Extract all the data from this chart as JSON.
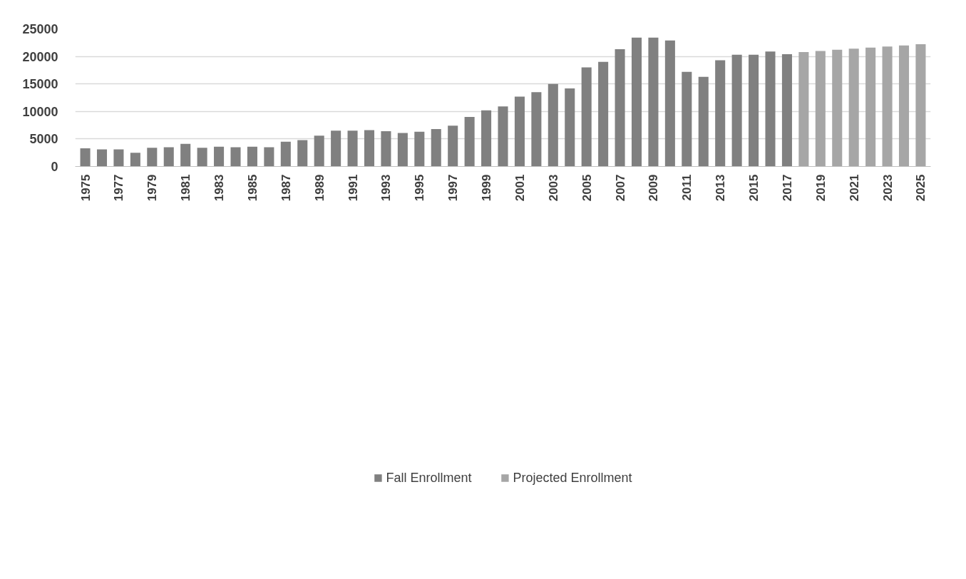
{
  "chart_data": {
    "type": "bar",
    "categories": [
      "1975",
      null,
      "1977",
      null,
      "1979",
      null,
      "1981",
      null,
      "1983",
      null,
      "1985",
      null,
      "1987",
      null,
      "1989",
      null,
      "1991",
      null,
      "1993",
      null,
      "1995",
      null,
      "1997",
      null,
      "1999",
      null,
      "2001",
      null,
      "2003",
      null,
      "2005",
      null,
      "2007",
      null,
      "2009",
      null,
      "2011",
      null,
      "2013",
      null,
      "2015",
      null,
      "2017",
      null,
      "2019",
      null,
      "2021",
      null,
      "2023",
      null,
      "2025"
    ],
    "series": [
      {
        "name": "Fall Enrollment",
        "color": "#808080",
        "values": [
          3300,
          3100,
          3100,
          2500,
          3400,
          3500,
          4100,
          3400,
          3600,
          3500,
          3600,
          3500,
          4500,
          4800,
          5600,
          6500,
          6500,
          6600,
          6400,
          6100,
          6300,
          6800,
          7400,
          9000,
          10200,
          10900,
          12700,
          13500,
          15000,
          14200,
          18000,
          19000,
          21300,
          23400,
          23400,
          22900,
          17200,
          16300,
          19300,
          20300,
          20300,
          20900,
          20400,
          null,
          null,
          null,
          null,
          null,
          null,
          null,
          null
        ]
      },
      {
        "name": "Projected Enrollment",
        "color": "#a6a6a6",
        "values": [
          null,
          null,
          null,
          null,
          null,
          null,
          null,
          null,
          null,
          null,
          null,
          null,
          null,
          null,
          null,
          null,
          null,
          null,
          null,
          null,
          null,
          null,
          null,
          null,
          null,
          null,
          null,
          null,
          null,
          null,
          null,
          null,
          null,
          null,
          null,
          null,
          null,
          null,
          null,
          null,
          null,
          null,
          null,
          20800,
          21000,
          21200,
          21400,
          21600,
          21800,
          22000,
          22200
        ]
      }
    ],
    "ylim": [
      0,
      25000
    ],
    "yticks": [
      0,
      5000,
      10000,
      15000,
      20000,
      25000
    ],
    "grid": "y",
    "legend": "bottom"
  }
}
